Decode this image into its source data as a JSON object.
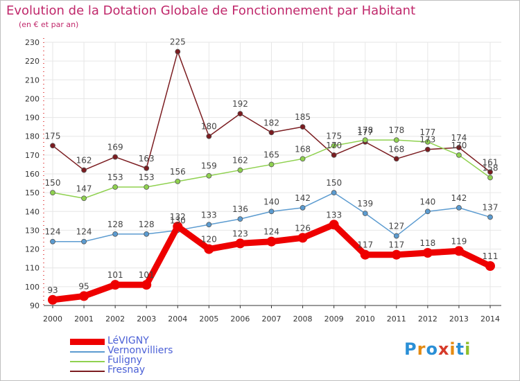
{
  "header": {
    "title": "Evolution de la Dotation Globale de Fonctionnement par Habitant",
    "subtitle": "(en € et par an)"
  },
  "logo": {
    "text": "Proxiti",
    "letters": [
      "P",
      "r",
      "o",
      "x",
      "i",
      "t",
      "i"
    ],
    "colors": [
      "#2a8fd6",
      "#e48a12",
      "#2a8fd6",
      "#d63a2a",
      "#e48a12",
      "#2a8fd6",
      "#8fbf2a"
    ]
  },
  "chart_data": {
    "type": "line",
    "x": [
      2000,
      2001,
      2002,
      2003,
      2004,
      2005,
      2006,
      2007,
      2008,
      2009,
      2010,
      2011,
      2012,
      2013,
      2014
    ],
    "ylim": [
      90,
      230
    ],
    "yticks": [
      90,
      100,
      110,
      120,
      130,
      140,
      150,
      160,
      170,
      180,
      190,
      200,
      210,
      220,
      230
    ],
    "grid": true,
    "legend_position": "bottom-left",
    "series": [
      {
        "name": "Fresnay",
        "color": "#7b1c20",
        "values": [
          175,
          162,
          169,
          163,
          225,
          180,
          192,
          182,
          185,
          170,
          177,
          168,
          173,
          174,
          161
        ]
      },
      {
        "name": "Fuligny",
        "color": "#8fd14f",
        "values": [
          150,
          147,
          153,
          153,
          156,
          159,
          162,
          165,
          168,
          175,
          178,
          178,
          177,
          170,
          158
        ]
      },
      {
        "name": "Vernonvilliers",
        "color": "#5b9bd0",
        "values": [
          124,
          124,
          128,
          128,
          130,
          133,
          136,
          140,
          142,
          150,
          139,
          127,
          140,
          142,
          137
        ]
      },
      {
        "name": "LéVIGNY",
        "color": "#ee0000",
        "values": [
          93,
          95,
          101,
          101,
          132,
          120,
          123,
          124,
          126,
          133,
          117,
          117,
          118,
          119,
          111
        ]
      }
    ],
    "data_labels": [
      {
        "series": "Fresnay",
        "labels": [
          "175",
          "162",
          "169",
          "163",
          "225",
          "180",
          "192",
          "182",
          "185",
          "170",
          "177",
          "168",
          "173",
          "174",
          "161"
        ]
      },
      {
        "series": "Fuligny",
        "labels": [
          "150",
          "147",
          "153",
          "153",
          "156",
          "159",
          "162",
          "165",
          "168",
          "175",
          "178",
          "178",
          "177",
          "170",
          "158"
        ]
      },
      {
        "series": "Vernonvilliers",
        "labels": [
          "124",
          "124",
          "128",
          "128",
          "130",
          "133",
          "136",
          "140",
          "142",
          "150",
          "139",
          "127",
          "140",
          "142",
          "137"
        ]
      },
      {
        "series": "LéVIGNY",
        "labels": [
          "93",
          "95",
          "101",
          "101",
          "132",
          "120",
          "123",
          "124",
          "126",
          "133",
          "117",
          "117",
          "118",
          "119",
          "111"
        ]
      }
    ]
  },
  "legend": {
    "items": [
      {
        "label": "LéVIGNY",
        "color": "#ee0000",
        "thick": true
      },
      {
        "label": "Vernonvilliers",
        "color": "#5b9bd0",
        "thick": false
      },
      {
        "label": "Fuligny",
        "color": "#8fd14f",
        "thick": false
      },
      {
        "label": "Fresnay",
        "color": "#7b1c20",
        "thick": false
      }
    ]
  }
}
